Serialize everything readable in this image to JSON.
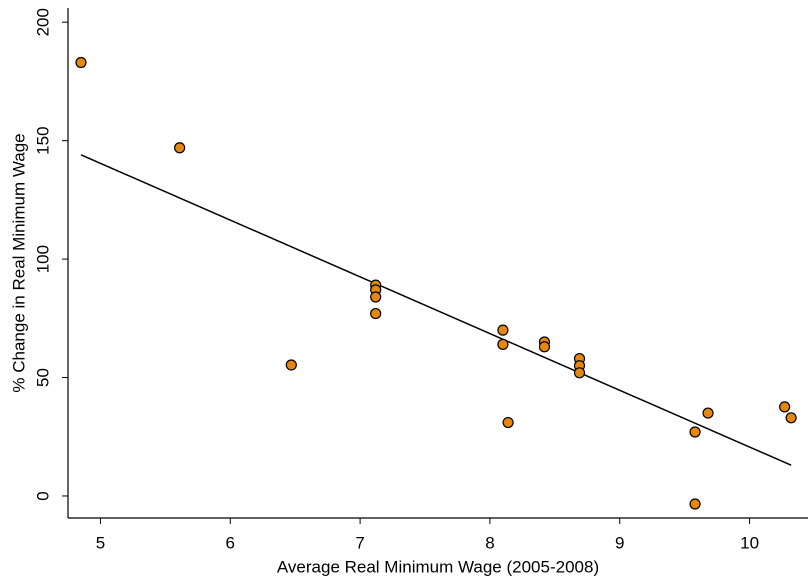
{
  "chart_data": {
    "type": "scatter",
    "x_label": "Average Real Minimum Wage (2005-2008)",
    "y_label": "% Change in Real Minimum Wage",
    "xlim": [
      4.75,
      10.45
    ],
    "ylim": [
      -9.3,
      206
    ],
    "xticks": [
      5,
      6,
      7,
      8,
      9,
      10
    ],
    "yticks": [
      0,
      50,
      100,
      150,
      200
    ],
    "series": [
      {
        "color": "#e8870e",
        "x": [
          4.85,
          5.61,
          6.47,
          7.12,
          7.12,
          7.12,
          7.12,
          8.1,
          8.1,
          8.14,
          8.42,
          8.42,
          8.69,
          8.69,
          8.69,
          9.58,
          9.58,
          9.68,
          10.27,
          10.32
        ],
        "values": [
          183,
          147,
          55.3,
          89,
          87,
          84,
          77,
          70,
          64,
          31,
          65,
          63,
          58,
          55,
          52,
          27,
          -3.4,
          35,
          37.6,
          33
        ]
      }
    ],
    "fit_line": {
      "color": "#000000",
      "x": [
        4.85,
        10.32
      ],
      "values": [
        144,
        13
      ]
    }
  }
}
